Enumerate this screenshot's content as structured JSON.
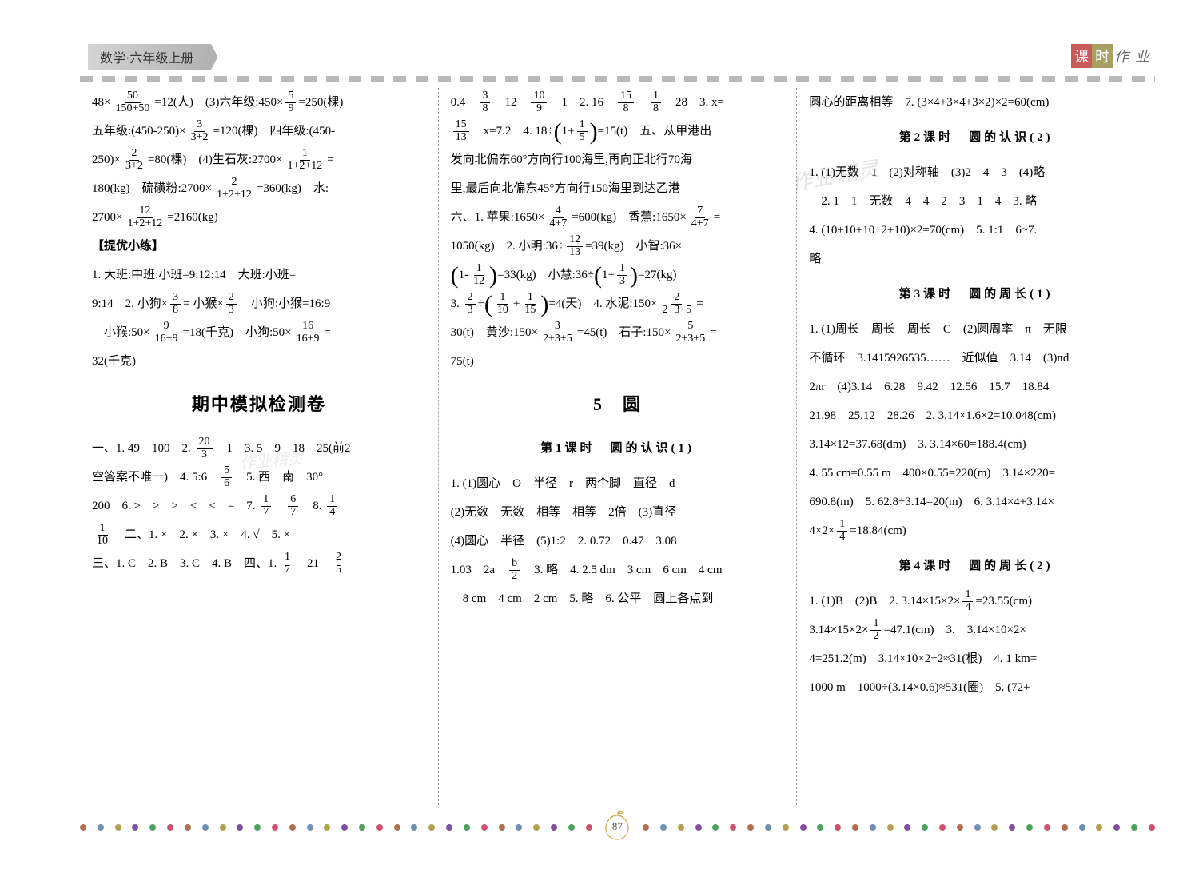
{
  "header": {
    "left": "数学·六年级上册",
    "right": [
      "课",
      "时",
      "作",
      "业"
    ]
  },
  "col1": {
    "l1a": "48×",
    "f1": {
      "n": "50",
      "d": "150+50"
    },
    "l1b": "=12(人)　(3)六年级:450×",
    "f2": {
      "n": "5",
      "d": "9"
    },
    "l1c": "=250(棵)",
    "l2a": "五年级:(450-250)×",
    "f3": {
      "n": "3",
      "d": "3+2"
    },
    "l2b": "=120(棵)　四年级:(450-",
    "l3a": "250)×",
    "f4": {
      "n": "2",
      "d": "3+2"
    },
    "l3b": "=80(棵)　(4)生石灰:2700×",
    "f5": {
      "n": "1",
      "d": "1+2+12"
    },
    "l3c": "=",
    "l4a": "180(kg)　硫磺粉:2700×",
    "f6": {
      "n": "2",
      "d": "1+2+12"
    },
    "l4b": "=360(kg)　水:",
    "l5a": "2700×",
    "f7": {
      "n": "12",
      "d": "1+2+12"
    },
    "l5b": "=2160(kg)",
    "tiyu": "【提优小练】",
    "l6": "1. 大班:中班:小班=9:12:14　大班:小班=",
    "l7a": "9:14　2. 小狗×",
    "f8": {
      "n": "3",
      "d": "8"
    },
    "l7b": "= 小猴×",
    "f8b": {
      "n": "2",
      "d": "3"
    },
    "l7c": "　小狗:小猴=16:9",
    "l8a": "　小猴:50×",
    "f9": {
      "n": "9",
      "d": "16+9"
    },
    "l8b": "=18(千克)　小狗:50×",
    "f10": {
      "n": "16",
      "d": "16+9"
    },
    "l8c": "=",
    "l9": "32(千克)",
    "midterm": "期中模拟检测卷",
    "l10a": "一、1. 49　100　2. ",
    "f11": {
      "n": "20",
      "d": "3"
    },
    "l10b": "　1　3. 5　9　18　25(前2",
    "l11a": "空答案不唯一)　4. 5:6　",
    "f12": {
      "n": "5",
      "d": "6"
    },
    "l11b": "　5. 西　南　30°",
    "l12a": "200　6. >　>　>　<　<　=　7. ",
    "f13": {
      "n": "1",
      "d": "7"
    },
    "l12b": "　",
    "f14": {
      "n": "6",
      "d": "7"
    },
    "l12c": "　8. ",
    "f15": {
      "n": "1",
      "d": "4"
    },
    "l13a": "",
    "f16": {
      "n": "1",
      "d": "10"
    },
    "l13b": "　二、1. ×　2. ×　3. ×　4. √　5. ×",
    "l14a": "三、1. C　2. B　3. C　4. B　四、1. ",
    "f17": {
      "n": "1",
      "d": "7"
    },
    "l14b": "　21　",
    "f18": {
      "n": "2",
      "d": "5"
    }
  },
  "col2": {
    "l1a": "0.4　",
    "f1": {
      "n": "3",
      "d": "8"
    },
    "l1b": "　12　",
    "f2": {
      "n": "10",
      "d": "9"
    },
    "l1c": "　1　2. 16　",
    "f3": {
      "n": "15",
      "d": "8"
    },
    "l1d": "　",
    "f4": {
      "n": "1",
      "d": "8"
    },
    "l1e": "　28　3. x=",
    "l2a": "",
    "f5": {
      "n": "15",
      "d": "13"
    },
    "l2b": "　x=7.2　4. 18÷",
    "l2bp1": "1+",
    "f6": {
      "n": "1",
      "d": "5"
    },
    "l2c": "=15(t)　五、从甲港出",
    "l3": "发向北偏东60°方向行100海里,再向正北行70海",
    "l4": "里,最后向北偏东45°方向行150海里到达乙港",
    "l5a": "六、1. 苹果:1650×",
    "f7": {
      "n": "4",
      "d": "4+7"
    },
    "l5b": "=600(kg)　香蕉:1650×",
    "f8": {
      "n": "7",
      "d": "4+7"
    },
    "l5c": "=",
    "l6a": "1050(kg)　2. 小明:36÷",
    "f9": {
      "n": "12",
      "d": "13"
    },
    "l6b": "=39(kg)　小智:36×",
    "l7a": "",
    "l7bp1": "1-",
    "f10": {
      "n": "1",
      "d": "12"
    },
    "l7b": "=33(kg)　小慧:36÷",
    "l7cp1": "1+",
    "f11": {
      "n": "1",
      "d": "3"
    },
    "l7c": "=27(kg)",
    "l8a": "3. ",
    "f12": {
      "n": "2",
      "d": "3"
    },
    "l8b": "÷",
    "f13": {
      "n": "1",
      "d": "10"
    },
    "l8bp": "+",
    "f14": {
      "n": "1",
      "d": "15"
    },
    "l8c": "=4(天)　4. 水泥:150×",
    "f15": {
      "n": "2",
      "d": "2+3+5"
    },
    "l8d": "=",
    "l9a": "30(t)　黄沙:150×",
    "f16": {
      "n": "3",
      "d": "2+3+5"
    },
    "l9b": "=45(t)　石子:150×",
    "f17": {
      "n": "5",
      "d": "2+3+5"
    },
    "l9c": "=",
    "l10": "75(t)",
    "sec5": "5　圆",
    "sub1": "第1课时　圆的认识(1)",
    "l11": "1. (1)圆心　O　半径　r　两个脚　直径　d",
    "l12": "(2)无数　无数　相等　相等　2倍　(3)直径",
    "l13": "(4)圆心　半径　(5)1:2　2. 0.72　0.47　3.08",
    "l14a": "1.03　2a　",
    "f18": {
      "n": "b",
      "d": "2"
    },
    "l14b": "　3. 略　4. 2.5 dm　3 cm　6 cm　4 cm",
    "l15": "　8 cm　4 cm　2 cm　5. 略　6. 公平　圆上各点到"
  },
  "col3": {
    "l1": "圆心的距离相等　7. (3×4+3×4+3×2)×2=60(cm)",
    "sub2": "第2课时　圆的认识(2)",
    "l2": "1. (1)无数　1　(2)对称轴　(3)2　4　3　(4)略",
    "l3": "　2. 1　1　无数　4　4　2　3　1　4　3. 略",
    "l4": "4. (10+10+10÷2+10)×2=70(cm)　5. 1:1　6~7.",
    "l5": "略",
    "sub3": "第3课时　圆的周长(1)",
    "l6": "1. (1)周长　周长　周长　C　(2)圆周率　π　无限",
    "l7": "不循环　3.1415926535……　近似值　3.14　(3)πd",
    "l8": "2πr　(4)3.14　6.28　9.42　12.56　15.7　18.84",
    "l9": "21.98　25.12　28.26　2. 3.14×1.6×2=10.048(cm)",
    "l10": "3.14×12=37.68(dm)　3. 3.14×60=188.4(cm)",
    "l11": "4. 55 cm=0.55 m　400×0.55=220(m)　3.14×220=",
    "l12": "690.8(m)　5. 62.8÷3.14=20(m)　6. 3.14×4+3.14×",
    "l13a": "4×2×",
    "f1": {
      "n": "1",
      "d": "4"
    },
    "l13b": "=18.84(cm)",
    "sub4": "第4课时　圆的周长(2)",
    "l14a": "1. (1)B　(2)B　2. 3.14×15×2×",
    "f2": {
      "n": "1",
      "d": "4"
    },
    "l14b": "=23.55(cm)",
    "l15a": "3.14×15×2×",
    "f3": {
      "n": "1",
      "d": "2"
    },
    "l15b": "=47.1(cm)　3.　3.14×10×2×",
    "l16": "4=251.2(m)　3.14×10×2÷2≈31(根)　4. 1 km=",
    "l17": "1000 m　1000÷(3.14×0.6)≈531(圈)　5. (72+"
  },
  "footer": {
    "page": "87",
    "dot_colors": [
      "#b07050",
      "#7090b0",
      "#b0a050",
      "#8050a0",
      "#50a060",
      "#d05070"
    ]
  }
}
